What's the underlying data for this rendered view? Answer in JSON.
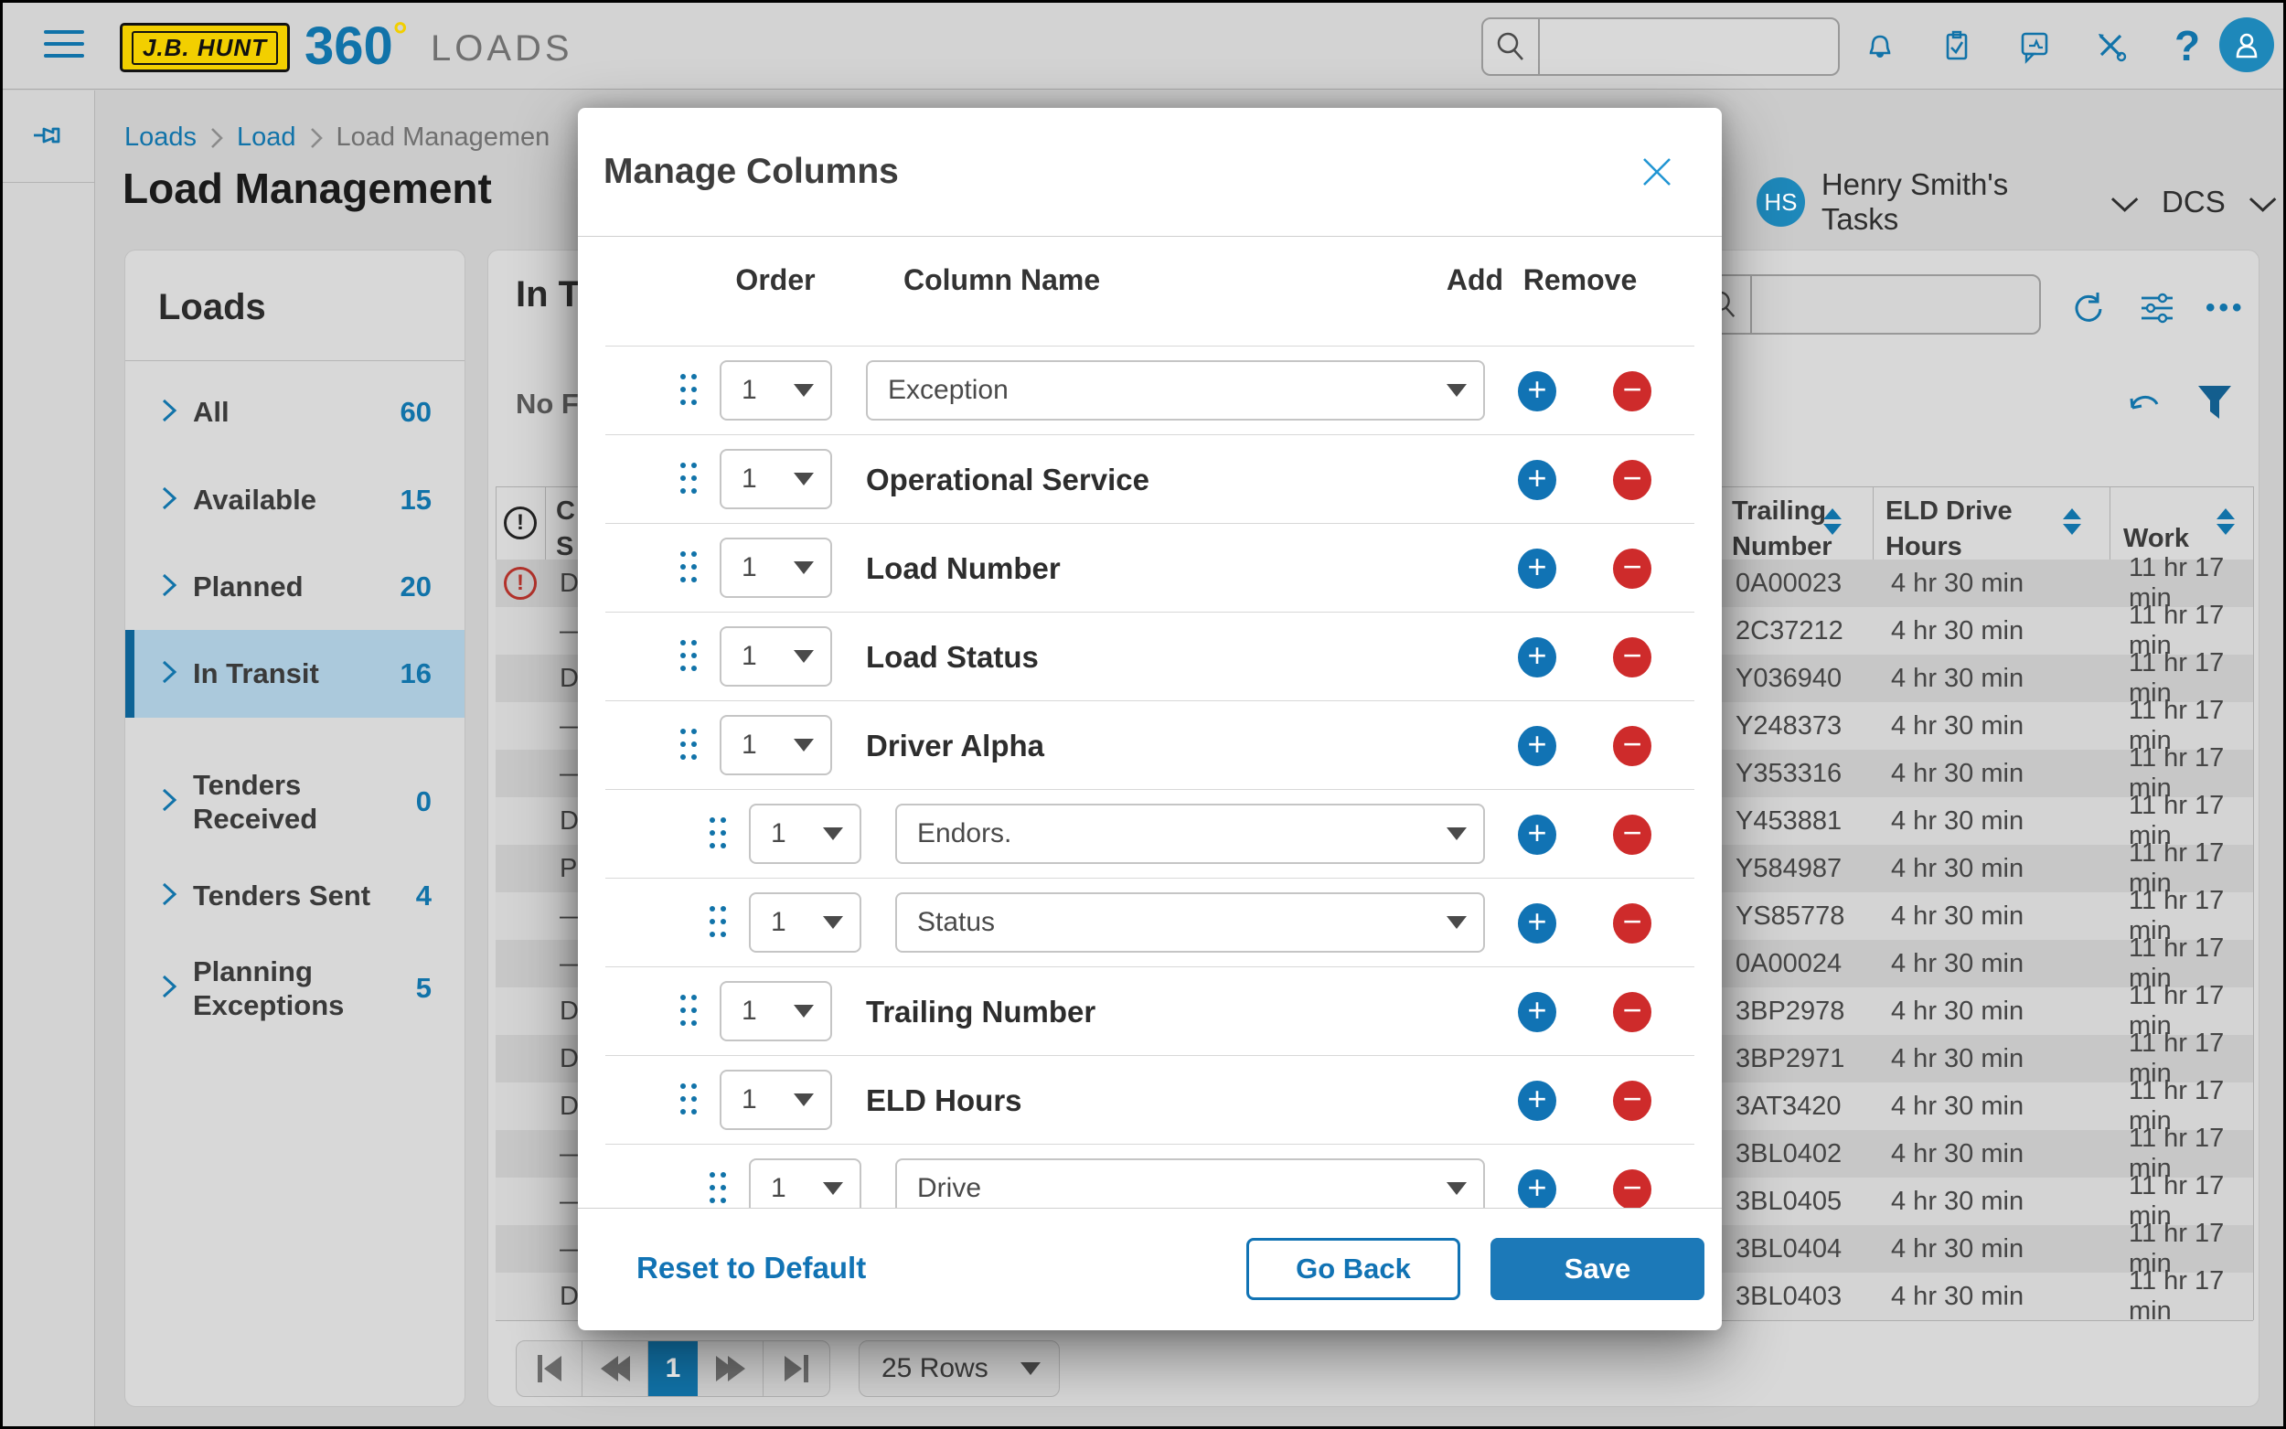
{
  "topbar": {
    "logo_text": "J.B. HUNT",
    "brand": "360",
    "brand_degree": "°",
    "app_title": "LOADS",
    "search_value": ""
  },
  "breadcrumb": {
    "items": [
      "Loads",
      "Load",
      "Load Managemen"
    ]
  },
  "page_header": {
    "title": "Load Management",
    "user_avatar_initials": "HS",
    "user_tasks_label": "Henry Smith's Tasks",
    "org_label": "DCS"
  },
  "sidebar": {
    "title": "Loads",
    "items": [
      {
        "label": "All",
        "count": "60",
        "selected": false
      },
      {
        "label": "Available",
        "count": "15",
        "selected": false
      },
      {
        "label": "Planned",
        "count": "20",
        "selected": false
      },
      {
        "label": "In Transit",
        "count": "16",
        "selected": true
      },
      {
        "label": "Tenders Received",
        "count": "0",
        "selected": false
      },
      {
        "label": "Tenders Sent",
        "count": "4",
        "selected": false
      },
      {
        "label": "Planning Exceptions",
        "count": "5",
        "selected": false
      }
    ]
  },
  "content": {
    "heading_visible": "In T",
    "filters_visible": "No F",
    "table": {
      "status_header_lines": [
        "C",
        "S"
      ],
      "trailing_header_lines": [
        "Trailing",
        "Number"
      ],
      "eld_header_lines": [
        "ELD Drive",
        "Hours"
      ],
      "work_header": "Work",
      "rows": [
        {
          "alert": true,
          "status": "D",
          "trailing": "0A00023",
          "eld": "4 hr 30 min",
          "work": "11 hr 17 min"
        },
        {
          "alert": false,
          "status": "—",
          "trailing": "2C37212",
          "eld": "4 hr 30 min",
          "work": "11 hr 17 min"
        },
        {
          "alert": false,
          "status": "D",
          "trailing": "Y036940",
          "eld": "4 hr 30 min",
          "work": "11 hr 17 min"
        },
        {
          "alert": false,
          "status": "—",
          "trailing": "Y248373",
          "eld": "4 hr 30 min",
          "work": "11 hr 17 min"
        },
        {
          "alert": false,
          "status": "—",
          "trailing": "Y353316",
          "eld": "4 hr 30 min",
          "work": "11 hr 17 min"
        },
        {
          "alert": false,
          "status": "D",
          "trailing": "Y453881",
          "eld": "4 hr 30 min",
          "work": "11 hr 17 min"
        },
        {
          "alert": false,
          "status": "P",
          "trailing": "Y584987",
          "eld": "4 hr 30 min",
          "work": "11 hr 17 min"
        },
        {
          "alert": false,
          "status": "—",
          "trailing": "YS85778",
          "eld": "4 hr 30 min",
          "work": "11 hr 17 min"
        },
        {
          "alert": false,
          "status": "—",
          "trailing": "0A00024",
          "eld": "4 hr 30 min",
          "work": "11 hr 17 min"
        },
        {
          "alert": false,
          "status": "D",
          "trailing": "3BP2978",
          "eld": "4 hr 30 min",
          "work": "11 hr 17 min"
        },
        {
          "alert": false,
          "status": "D",
          "trailing": "3BP2971",
          "eld": "4 hr 30 min",
          "work": "11 hr 17 min"
        },
        {
          "alert": false,
          "status": "D",
          "trailing": "3AT3420",
          "eld": "4 hr 30 min",
          "work": "11 hr 17 min"
        },
        {
          "alert": false,
          "status": "—",
          "trailing": "3BL0402",
          "eld": "4 hr 30 min",
          "work": "11 hr 17 min"
        },
        {
          "alert": false,
          "status": "—",
          "trailing": "3BL0405",
          "eld": "4 hr 30 min",
          "work": "11 hr 17 min"
        },
        {
          "alert": false,
          "status": "—",
          "trailing": "3BL0404",
          "eld": "4 hr 30 min",
          "work": "11 hr 17 min"
        },
        {
          "alert": false,
          "status": "D",
          "trailing": "3BL0403",
          "eld": "4 hr 30 min",
          "work": "11 hr 17 min"
        }
      ]
    },
    "pagination": {
      "current_page": "1",
      "rows_per_page": "25 Rows"
    }
  },
  "modal": {
    "title": "Manage Columns",
    "headers": {
      "order": "Order",
      "column_name": "Column Name",
      "add": "Add",
      "remove": "Remove"
    },
    "rows": [
      {
        "order": "1",
        "label": "Exception",
        "control": "dropdown",
        "indent": false
      },
      {
        "order": "1",
        "label": "Operational Service",
        "control": "text",
        "indent": false
      },
      {
        "order": "1",
        "label": "Load Number",
        "control": "text",
        "indent": false
      },
      {
        "order": "1",
        "label": "Load Status",
        "control": "text",
        "indent": false
      },
      {
        "order": "1",
        "label": "Driver Alpha",
        "control": "text",
        "indent": false
      },
      {
        "order": "1",
        "label": "Endors.",
        "control": "dropdown",
        "indent": true
      },
      {
        "order": "1",
        "label": "Status",
        "control": "dropdown",
        "indent": true
      },
      {
        "order": "1",
        "label": "Trailing Number",
        "control": "text",
        "indent": false
      },
      {
        "order": "1",
        "label": "ELD Hours",
        "control": "text",
        "indent": false
      },
      {
        "order": "1",
        "label": "Drive",
        "control": "dropdown",
        "indent": true
      }
    ],
    "footer": {
      "reset": "Reset to Default",
      "back": "Go Back",
      "save": "Save"
    }
  },
  "colors": {
    "accent_blue": "#1173a9",
    "bright_blue": "#1e88ba",
    "save_blue": "#1c79b8",
    "remove_red": "#ce2b2b",
    "alert_red": "#b3322b",
    "selected_item_bg": "#abc9dc",
    "selected_item_bar": "#0d6396",
    "logo_yellow": "#f2cf00"
  }
}
